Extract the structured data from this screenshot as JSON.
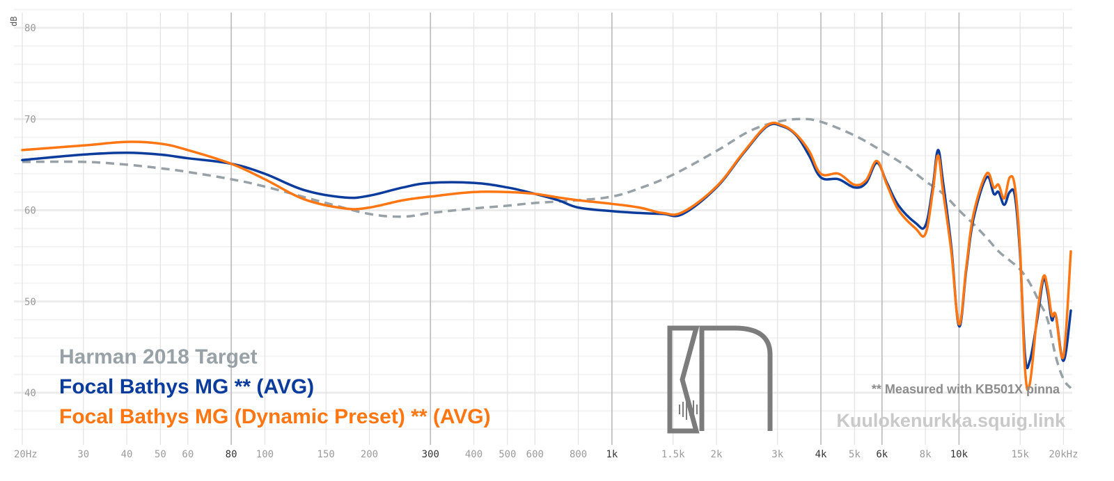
{
  "chart_data": {
    "type": "line",
    "title": "",
    "xlabel": "",
    "ylabel": "dB",
    "xscale": "log",
    "xlim": [
      20,
      21000
    ],
    "ylim": [
      34,
      83
    ],
    "y_ticks": [
      {
        "value": 40,
        "label": "40"
      },
      {
        "value": 50,
        "label": "50"
      },
      {
        "value": 60,
        "label": "60"
      },
      {
        "value": 70,
        "label": "70"
      },
      {
        "value": 80,
        "label": "80"
      }
    ],
    "x_ticks": [
      {
        "value": 20,
        "label": "20Hz",
        "major": false
      },
      {
        "value": 30,
        "label": "30",
        "major": false
      },
      {
        "value": 40,
        "label": "40",
        "major": false
      },
      {
        "value": 50,
        "label": "50",
        "major": false
      },
      {
        "value": 60,
        "label": "60",
        "major": false
      },
      {
        "value": 80,
        "label": "80",
        "major": true
      },
      {
        "value": 100,
        "label": "100",
        "major": false
      },
      {
        "value": 150,
        "label": "150",
        "major": false
      },
      {
        "value": 200,
        "label": "200",
        "major": false
      },
      {
        "value": 300,
        "label": "300",
        "major": true
      },
      {
        "value": 400,
        "label": "400",
        "major": false
      },
      {
        "value": 500,
        "label": "500",
        "major": false
      },
      {
        "value": 600,
        "label": "600",
        "major": false
      },
      {
        "value": 800,
        "label": "800",
        "major": false
      },
      {
        "value": 1000,
        "label": "1k",
        "major": true
      },
      {
        "value": 1500,
        "label": "1.5k",
        "major": false
      },
      {
        "value": 2000,
        "label": "2k",
        "major": false
      },
      {
        "value": 3000,
        "label": "3k",
        "major": false
      },
      {
        "value": 4000,
        "label": "4k",
        "major": true
      },
      {
        "value": 5000,
        "label": "5k",
        "major": false
      },
      {
        "value": 6000,
        "label": "6k",
        "major": true
      },
      {
        "value": 8000,
        "label": "8k",
        "major": false
      },
      {
        "value": 10000,
        "label": "10k",
        "major": true
      },
      {
        "value": 15000,
        "label": "15k",
        "major": false
      },
      {
        "value": 20000,
        "label": "20kHz",
        "major": false
      }
    ],
    "series": [
      {
        "name": "Harman 2018 Target",
        "color": "#98a2a6",
        "dashed": true,
        "points": [
          [
            20,
            65.3
          ],
          [
            30,
            65.3
          ],
          [
            40,
            65.0
          ],
          [
            50,
            64.6
          ],
          [
            60,
            64.2
          ],
          [
            80,
            63.4
          ],
          [
            100,
            62.6
          ],
          [
            150,
            60.8
          ],
          [
            200,
            59.6
          ],
          [
            250,
            59.3
          ],
          [
            300,
            59.7
          ],
          [
            400,
            60.2
          ],
          [
            500,
            60.5
          ],
          [
            600,
            60.8
          ],
          [
            800,
            61.1
          ],
          [
            1000,
            61.5
          ],
          [
            1200,
            62.4
          ],
          [
            1500,
            63.9
          ],
          [
            2000,
            66.5
          ],
          [
            2500,
            68.7
          ],
          [
            3000,
            69.7
          ],
          [
            3500,
            70.0
          ],
          [
            4000,
            69.7
          ],
          [
            5000,
            68.2
          ],
          [
            6000,
            66.5
          ],
          [
            7000,
            64.9
          ],
          [
            8000,
            63.2
          ],
          [
            9000,
            61.8
          ],
          [
            10000,
            60.0
          ],
          [
            11000,
            58.5
          ],
          [
            12000,
            57.0
          ],
          [
            13000,
            55.5
          ],
          [
            14000,
            54.5
          ],
          [
            15000,
            53.5
          ],
          [
            16000,
            52.0
          ],
          [
            17000,
            50.0
          ],
          [
            18000,
            48.0
          ],
          [
            19000,
            44.0
          ],
          [
            20000,
            41.5
          ],
          [
            21000,
            40.5
          ]
        ]
      },
      {
        "name": "Focal Bathys MG ** (AVG)",
        "color": "#0b3c9c",
        "dashed": false,
        "points": [
          [
            20,
            65.5
          ],
          [
            30,
            66.1
          ],
          [
            40,
            66.3
          ],
          [
            50,
            66.1
          ],
          [
            60,
            65.7
          ],
          [
            80,
            65.1
          ],
          [
            100,
            64.0
          ],
          [
            130,
            62.2
          ],
          [
            170,
            61.4
          ],
          [
            200,
            61.6
          ],
          [
            250,
            62.5
          ],
          [
            300,
            63.0
          ],
          [
            400,
            63.0
          ],
          [
            500,
            62.5
          ],
          [
            600,
            61.8
          ],
          [
            700,
            61.1
          ],
          [
            800,
            60.3
          ],
          [
            1000,
            59.9
          ],
          [
            1200,
            59.7
          ],
          [
            1400,
            59.6
          ],
          [
            1600,
            59.6
          ],
          [
            2000,
            62.5
          ],
          [
            2400,
            66.3
          ],
          [
            2800,
            69.2
          ],
          [
            3100,
            69.2
          ],
          [
            3400,
            68.2
          ],
          [
            3700,
            66.0
          ],
          [
            4000,
            63.6
          ],
          [
            4500,
            63.4
          ],
          [
            5000,
            62.5
          ],
          [
            5400,
            63.0
          ],
          [
            5800,
            65.2
          ],
          [
            6200,
            63.0
          ],
          [
            6700,
            60.5
          ],
          [
            7500,
            58.6
          ],
          [
            8000,
            58.3
          ],
          [
            8400,
            62.5
          ],
          [
            8700,
            66.6
          ],
          [
            9000,
            63.0
          ],
          [
            9500,
            56.0
          ],
          [
            10000,
            47.3
          ],
          [
            10500,
            53.5
          ],
          [
            11000,
            59.0
          ],
          [
            12000,
            63.6
          ],
          [
            12600,
            61.8
          ],
          [
            13000,
            62.0
          ],
          [
            13500,
            60.6
          ],
          [
            14000,
            62.0
          ],
          [
            14500,
            61.5
          ],
          [
            15000,
            55.0
          ],
          [
            15500,
            44.0
          ],
          [
            16000,
            43.5
          ],
          [
            16800,
            48.0
          ],
          [
            17500,
            52.4
          ],
          [
            18000,
            51.0
          ],
          [
            18500,
            48.0
          ],
          [
            19000,
            48.5
          ],
          [
            20000,
            43.5
          ],
          [
            21000,
            49.0
          ]
        ]
      },
      {
        "name": "Focal Bathys MG (Dynamic Preset) ** (AVG)",
        "color": "#ff7613",
        "dashed": false,
        "points": [
          [
            20,
            66.6
          ],
          [
            30,
            67.1
          ],
          [
            40,
            67.5
          ],
          [
            50,
            67.3
          ],
          [
            60,
            66.6
          ],
          [
            80,
            65.1
          ],
          [
            100,
            63.4
          ],
          [
            130,
            61.2
          ],
          [
            170,
            60.2
          ],
          [
            200,
            60.3
          ],
          [
            250,
            61.1
          ],
          [
            300,
            61.5
          ],
          [
            400,
            62.0
          ],
          [
            500,
            62.0
          ],
          [
            600,
            61.8
          ],
          [
            700,
            61.4
          ],
          [
            800,
            61.1
          ],
          [
            1000,
            60.7
          ],
          [
            1200,
            60.3
          ],
          [
            1400,
            59.7
          ],
          [
            1600,
            59.8
          ],
          [
            2000,
            62.6
          ],
          [
            2400,
            66.4
          ],
          [
            2800,
            69.3
          ],
          [
            3100,
            69.3
          ],
          [
            3400,
            68.3
          ],
          [
            3700,
            66.5
          ],
          [
            4000,
            64.0
          ],
          [
            4500,
            64.0
          ],
          [
            5000,
            62.8
          ],
          [
            5400,
            63.3
          ],
          [
            5800,
            65.4
          ],
          [
            6200,
            62.8
          ],
          [
            6700,
            60.0
          ],
          [
            7500,
            58.0
          ],
          [
            8000,
            57.4
          ],
          [
            8400,
            62.0
          ],
          [
            8700,
            66.0
          ],
          [
            9000,
            62.0
          ],
          [
            9500,
            55.5
          ],
          [
            10000,
            47.5
          ],
          [
            10500,
            53.8
          ],
          [
            11000,
            59.5
          ],
          [
            12000,
            64.0
          ],
          [
            12600,
            62.5
          ],
          [
            13000,
            62.8
          ],
          [
            13500,
            61.3
          ],
          [
            14000,
            63.6
          ],
          [
            14500,
            62.5
          ],
          [
            15000,
            55.5
          ],
          [
            15500,
            42.5
          ],
          [
            16000,
            41.0
          ],
          [
            16800,
            48.5
          ],
          [
            17500,
            52.7
          ],
          [
            18000,
            51.5
          ],
          [
            18500,
            48.5
          ],
          [
            19000,
            48.5
          ],
          [
            20000,
            44.0
          ],
          [
            21000,
            55.5
          ]
        ]
      }
    ],
    "legend": [
      {
        "label": "Harman 2018 Target",
        "color": "#98a2a6"
      },
      {
        "label": "Focal Bathys MG ** (AVG)",
        "color": "#0b3c9c"
      },
      {
        "label": "Focal Bathys MG (Dynamic Preset) ** (AVG)",
        "color": "#ff7613"
      }
    ],
    "legend_position": "bottom-left",
    "annotations": {
      "note": "** Measured with KB501X pinna",
      "watermark": "Kuulokenurkka.squig.link",
      "logo": "KN"
    }
  }
}
